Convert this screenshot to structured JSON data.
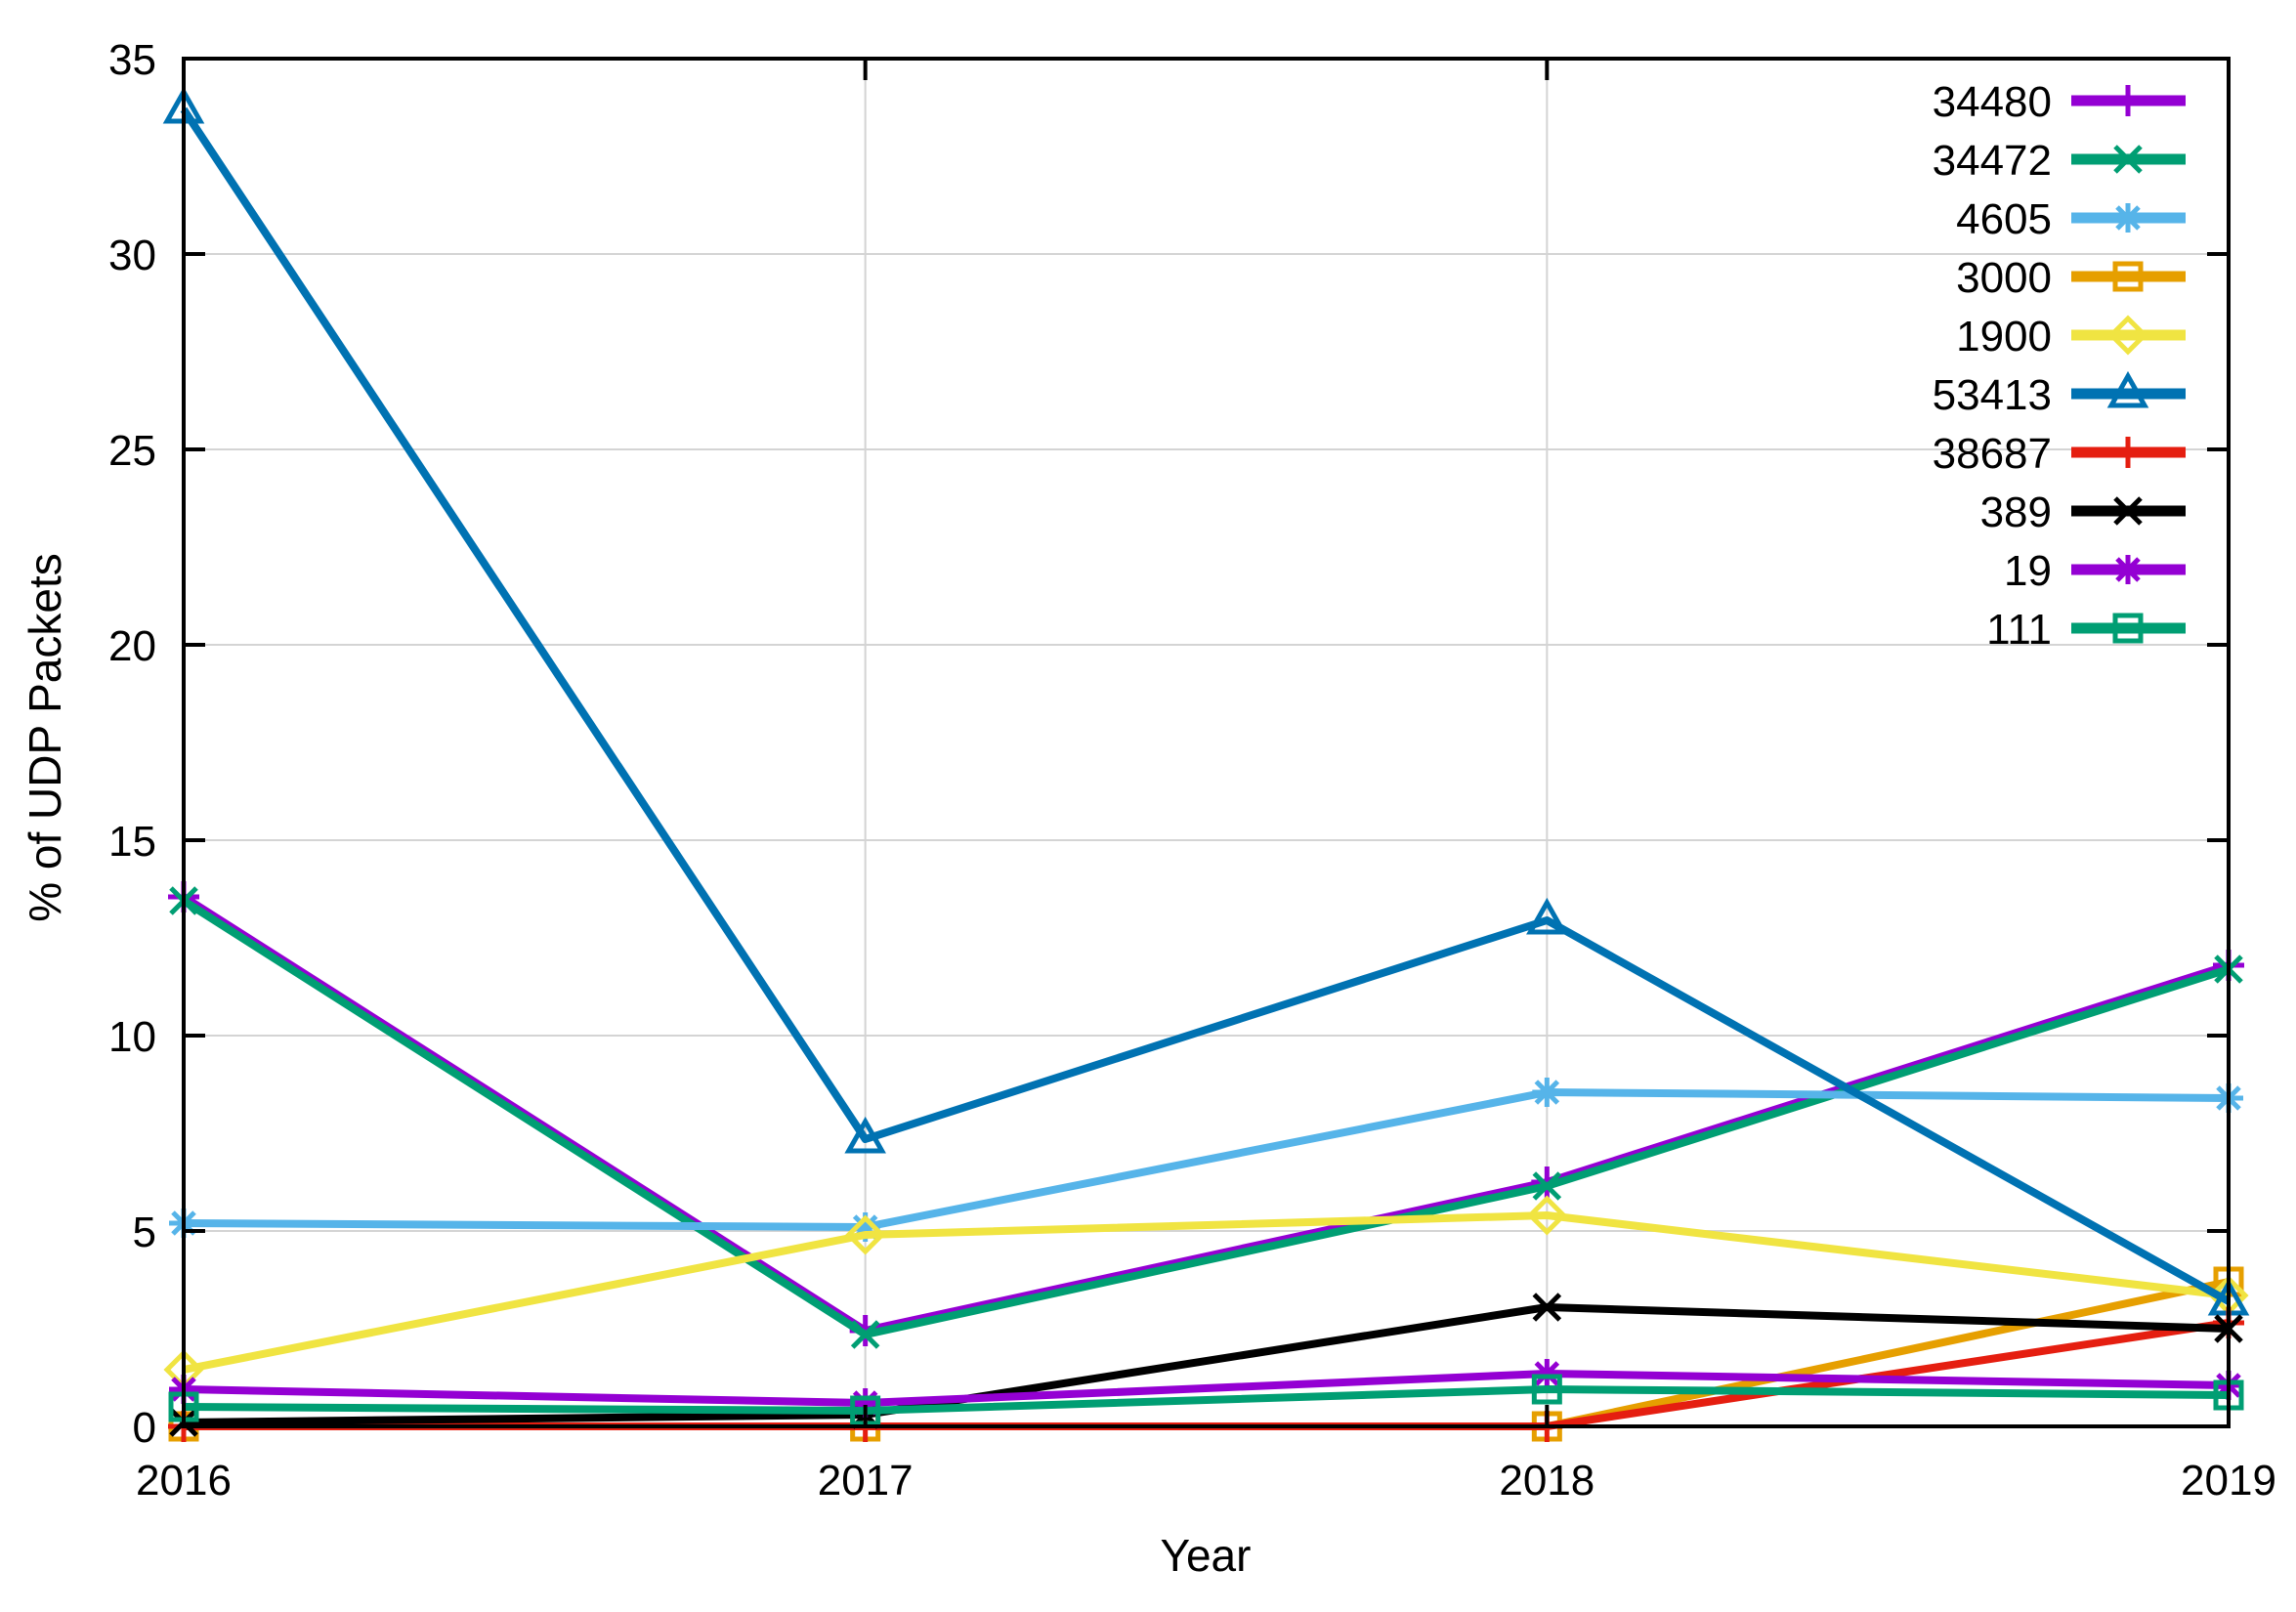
{
  "chart_data": {
    "type": "line",
    "title": "",
    "xlabel": "Year",
    "ylabel": "% of UDP Packets",
    "x": [
      2016,
      2017,
      2018,
      2019
    ],
    "xlim": [
      2016,
      2019
    ],
    "ylim": [
      0,
      35
    ],
    "yticks": [
      0,
      5,
      10,
      15,
      20,
      25,
      30,
      35
    ],
    "grid": true,
    "legend_position": "top-right-inside",
    "axis_color": "#000000",
    "grid_color": "#d4d4d4",
    "background_color": "#ffffff",
    "series": [
      {
        "name": "34480",
        "color": "#9400d3",
        "marker": "plus",
        "values": [
          13.55,
          2.45,
          6.25,
          11.8
        ]
      },
      {
        "name": "34472",
        "color": "#009e73",
        "marker": "cross",
        "values": [
          13.45,
          2.35,
          6.15,
          11.7
        ]
      },
      {
        "name": "4605",
        "color": "#56b4e9",
        "marker": "asterisk",
        "values": [
          5.2,
          5.1,
          8.55,
          8.4
        ]
      },
      {
        "name": "3000",
        "color": "#e69f00",
        "marker": "square-open",
        "values": [
          0.0,
          0.0,
          0.0,
          3.7
        ]
      },
      {
        "name": "1900",
        "color": "#f0e442",
        "marker": "diamond-open",
        "values": [
          1.45,
          4.9,
          5.4,
          3.35
        ]
      },
      {
        "name": "53413",
        "color": "#0072b2",
        "marker": "triangle-open",
        "values": [
          33.7,
          7.35,
          12.95,
          3.2
        ]
      },
      {
        "name": "38687",
        "color": "#e51e10",
        "marker": "plus",
        "values": [
          0.0,
          0.0,
          0.0,
          2.65
        ]
      },
      {
        "name": "389",
        "color": "#000000",
        "marker": "cross",
        "values": [
          0.1,
          0.3,
          3.05,
          2.5
        ]
      },
      {
        "name": "19",
        "color": "#9400d3",
        "marker": "asterisk",
        "values": [
          0.95,
          0.6,
          1.35,
          1.05
        ]
      },
      {
        "name": "111",
        "color": "#009e73",
        "marker": "square-open",
        "values": [
          0.5,
          0.4,
          0.95,
          0.8
        ]
      }
    ]
  }
}
